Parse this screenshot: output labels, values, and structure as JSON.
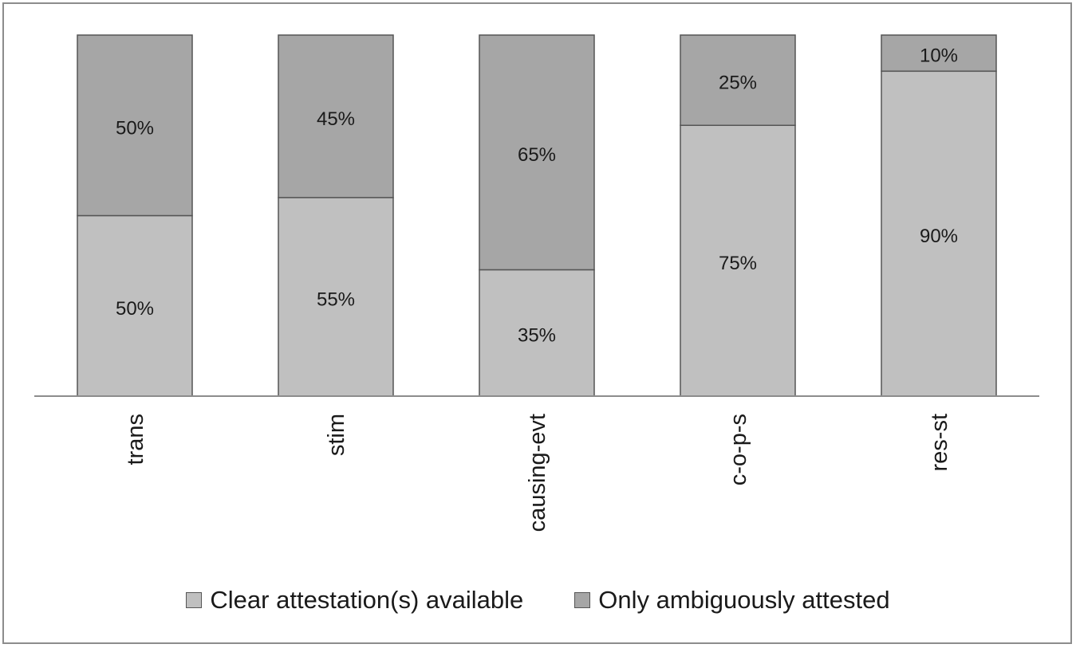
{
  "chart_data": {
    "type": "bar",
    "stacked": true,
    "normalized": true,
    "categories": [
      "trans",
      "stim",
      "causing-evt",
      "c-o-p-s",
      "res-st"
    ],
    "series": [
      {
        "name": "Clear attestation(s) available",
        "values": [
          50,
          55,
          35,
          75,
          90
        ],
        "labels": [
          "50%",
          "55%",
          "35%",
          "75%",
          "90%"
        ],
        "color": "#c0c0c0"
      },
      {
        "name": "Only ambiguously attested",
        "values": [
          50,
          45,
          65,
          25,
          10
        ],
        "labels": [
          "50%",
          "45%",
          "65%",
          "25%",
          "10%"
        ],
        "color": "#a6a6a6"
      }
    ],
    "title": "",
    "xlabel": "",
    "ylabel": "",
    "ylim": [
      0,
      100
    ],
    "grid": false,
    "legend_position": "bottom",
    "x_tick_rotation": "vertical"
  },
  "style": {
    "border_color": "#8c8c8c",
    "axis_color": "#8c8c8c",
    "bar_stroke": "#555555",
    "text_color": "#1a1a1a"
  }
}
